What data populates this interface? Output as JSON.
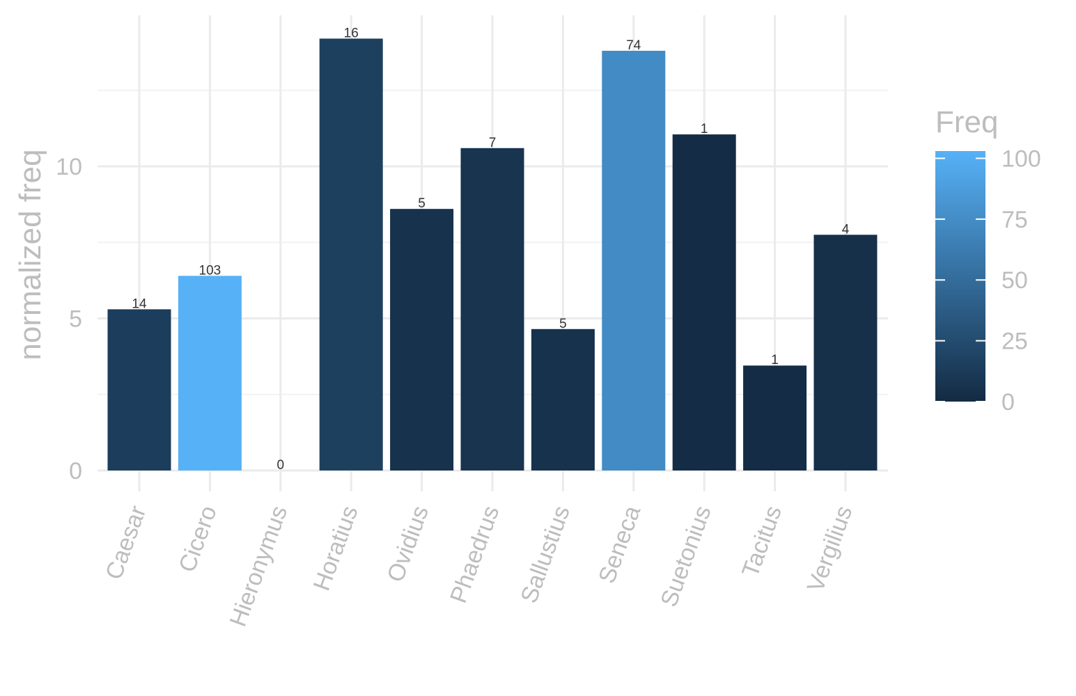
{
  "chart_data": {
    "type": "bar",
    "categories": [
      "Caesar",
      "Cicero",
      "Hieronymus",
      "Horatius",
      "Ovidius",
      "Phaedrus",
      "Sallustius",
      "Seneca",
      "Suetonius",
      "Tacitus",
      "Vergilius"
    ],
    "values": [
      5.3,
      6.4,
      0,
      14.2,
      8.6,
      10.6,
      4.65,
      13.8,
      11.05,
      3.45,
      7.75
    ],
    "labels": [
      "14",
      "103",
      "0",
      "16",
      "5",
      "7",
      "5",
      "74",
      "1",
      "1",
      "4"
    ],
    "fill_values": [
      14,
      103,
      0,
      16,
      5,
      7,
      5,
      74,
      1,
      1,
      4
    ],
    "title": "",
    "xlabel": "",
    "ylabel": "normalized freq",
    "ylim": [
      0,
      14.7
    ],
    "yticks": [
      0,
      5,
      10
    ],
    "grid": true,
    "legend": {
      "title": "Freq",
      "position": "right",
      "ticks": [
        0,
        25,
        50,
        75,
        100
      ],
      "range": [
        0,
        103
      ],
      "color_low": "#132b43",
      "color_high": "#56b1f7"
    }
  }
}
